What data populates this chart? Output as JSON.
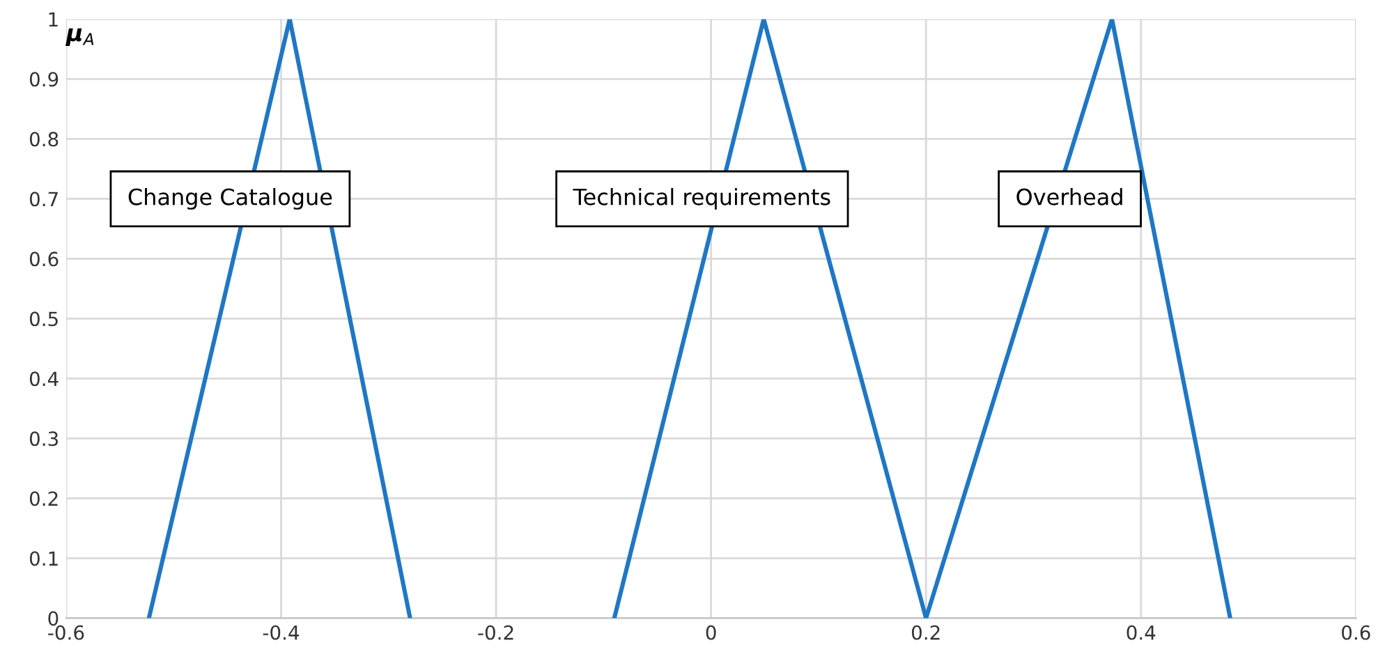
{
  "chart_data": {
    "type": "line",
    "ylabel": "μ$_{A}$",
    "series": [
      {
        "color": "#1f77c4",
        "x": [
          -0.523,
          -0.392,
          -0.28
        ],
        "values": [
          0,
          1,
          0
        ]
      },
      {
        "color": "#1f77c4",
        "x": [
          -0.09,
          0.049,
          0.2
        ],
        "values": [
          0,
          1,
          0
        ]
      },
      {
        "color": "#1f77c4",
        "x": [
          0.2,
          0.373,
          0.483
        ],
        "values": [
          0,
          1,
          0
        ]
      }
    ],
    "annotations": [
      "Change Catalogue",
      "Technical requirements",
      "Overhead"
    ],
    "xlim": [
      -0.6,
      0.6
    ],
    "xticks": [
      -0.6,
      -0.4,
      -0.2,
      0,
      0.2,
      0.4,
      0.6
    ],
    "ylim": [
      0,
      1
    ],
    "yticks": [
      0,
      0.1,
      0.2,
      0.3,
      0.4,
      0.5,
      0.6,
      0.7,
      0.8,
      0.9,
      1
    ],
    "grid": true,
    "marker": "none",
    "line_style": "solid"
  }
}
